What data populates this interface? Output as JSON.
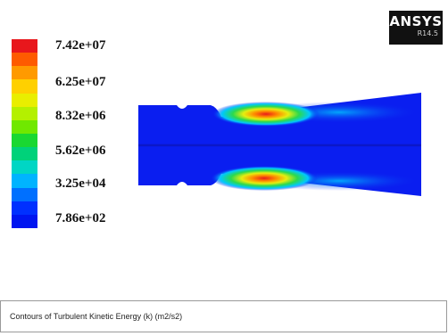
{
  "legend": {
    "labels": [
      "7.42e+07",
      "6.25e+07",
      "8.32e+06",
      "5.62e+06",
      "3.25e+04",
      "7.86e+02"
    ],
    "colors": [
      "#e8171c",
      "#fe5b00",
      "#ff9a00",
      "#ffd000",
      "#e9ee00",
      "#b4f000",
      "#70e800",
      "#19d832",
      "#00d27a",
      "#00d6c4",
      "#00b4ff",
      "#0070ff",
      "#0030ff",
      "#0015f0"
    ]
  },
  "logo": {
    "name": "ANSYS",
    "version": "R14.5"
  },
  "caption": "Contours of Turbulent Kinetic Energy (k) (m2/s2)",
  "palette": {
    "field_blue": "#0a1ef0",
    "seam_blue": "#0b17c8",
    "cyan": "#00c8ff",
    "green": "#2bd94e",
    "yellow": "#e6ee10",
    "orange": "#ff8a00",
    "red": "#e81b1b"
  }
}
